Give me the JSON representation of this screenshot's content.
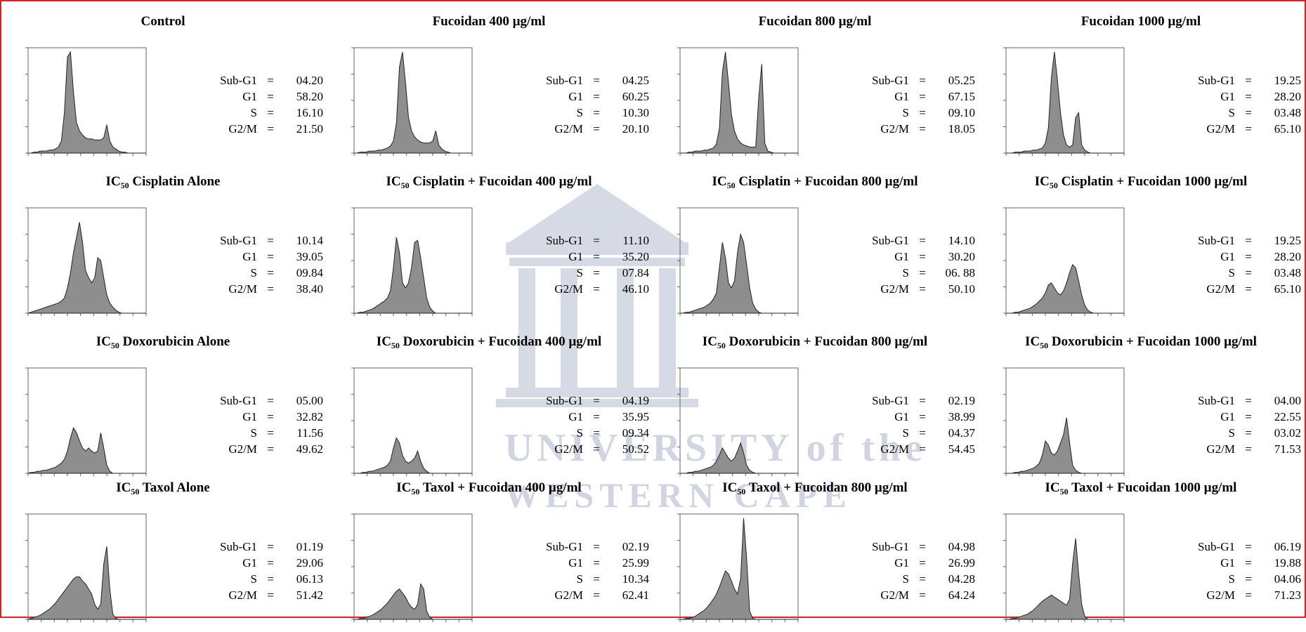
{
  "colors": {
    "frame": "#e02020",
    "fill": "#8e8e8e",
    "watermark": "#4a5a8a"
  },
  "watermark": {
    "line1": "UNIVERSITY of the",
    "line2": "WESTERN CAPE"
  },
  "panels": [
    {
      "title_pre": "",
      "title_sub": "",
      "title_post": "Control",
      "stats": [
        {
          "label": "Sub-G1",
          "value": "04.20"
        },
        {
          "label": "G1",
          "value": "58.20"
        },
        {
          "label": "S",
          "value": "16.10"
        },
        {
          "label": "G2/M",
          "value": "21.50"
        }
      ]
    },
    {
      "title_pre": "",
      "title_sub": "",
      "title_post": "Fucoidan 400 µg/ml",
      "stats": [
        {
          "label": "Sub-G1",
          "value": "04.25"
        },
        {
          "label": "G1",
          "value": "60.25"
        },
        {
          "label": "S",
          "value": "10.30"
        },
        {
          "label": "G2/M",
          "value": "20.10"
        }
      ]
    },
    {
      "title_pre": "",
      "title_sub": "",
      "title_post": "Fucoidan 800 µg/ml",
      "stats": [
        {
          "label": "Sub-G1",
          "value": "05.25"
        },
        {
          "label": "G1",
          "value": "67.15"
        },
        {
          "label": "S",
          "value": "09.10"
        },
        {
          "label": "G2/M",
          "value": "18.05"
        }
      ]
    },
    {
      "title_pre": "",
      "title_sub": "",
      "title_post": "Fucoidan 1000 µg/ml",
      "stats": [
        {
          "label": "Sub-G1",
          "value": "19.25"
        },
        {
          "label": "G1",
          "value": "28.20"
        },
        {
          "label": "S",
          "value": "03.48"
        },
        {
          "label": "G2/M",
          "value": "65.10"
        }
      ]
    },
    {
      "title_pre": "IC",
      "title_sub": "50",
      "title_post": " Cisplatin Alone",
      "stats": [
        {
          "label": "Sub-G1",
          "value": "10.14"
        },
        {
          "label": "G1",
          "value": "39.05"
        },
        {
          "label": "S",
          "value": "09.84"
        },
        {
          "label": "G2/M",
          "value": "38.40"
        }
      ]
    },
    {
      "title_pre": "IC",
      "title_sub": "50",
      "title_post": " Cisplatin + Fucoidan 400 µg/ml",
      "stats": [
        {
          "label": "Sub-G1",
          "value": "11.10"
        },
        {
          "label": "G1",
          "value": "35.20"
        },
        {
          "label": "S",
          "value": "07.84"
        },
        {
          "label": "G2/M",
          "value": "46.10"
        }
      ]
    },
    {
      "title_pre": "IC",
      "title_sub": "50",
      "title_post": " Cisplatin + Fucoidan 800 µg/ml",
      "stats": [
        {
          "label": "Sub-G1",
          "value": "14.10"
        },
        {
          "label": "G1",
          "value": "30.20"
        },
        {
          "label": "S",
          "value": "06. 88"
        },
        {
          "label": "G2/M",
          "value": "50.10"
        }
      ]
    },
    {
      "title_pre": "IC",
      "title_sub": "50",
      "title_post": " Cisplatin + Fucoidan 1000 µg/ml",
      "stats": [
        {
          "label": "Sub-G1",
          "value": "19.25"
        },
        {
          "label": "G1",
          "value": "28.20"
        },
        {
          "label": "S",
          "value": "03.48"
        },
        {
          "label": "G2/M",
          "value": "65.10"
        }
      ]
    },
    {
      "title_pre": "IC",
      "title_sub": "50",
      "title_post": " Doxorubicin Alone",
      "stats": [
        {
          "label": "Sub-G1",
          "value": "05.00"
        },
        {
          "label": "G1",
          "value": "32.82"
        },
        {
          "label": "S",
          "value": "11.56"
        },
        {
          "label": "G2/M",
          "value": "49.62"
        }
      ]
    },
    {
      "title_pre": "IC",
      "title_sub": "50",
      "title_post": " Doxorubicin + Fucoidan 400 µg/ml",
      "stats": [
        {
          "label": "Sub-G1",
          "value": "04.19"
        },
        {
          "label": "G1",
          "value": "35.95"
        },
        {
          "label": "S",
          "value": "09.34"
        },
        {
          "label": "G2/M",
          "value": "50.52"
        }
      ]
    },
    {
      "title_pre": "IC",
      "title_sub": "50",
      "title_post": " Doxorubicin + Fucoidan 800 µg/ml",
      "stats": [
        {
          "label": "Sub-G1",
          "value": "02.19"
        },
        {
          "label": "G1",
          "value": "38.99"
        },
        {
          "label": "S",
          "value": "04.37"
        },
        {
          "label": "G2/M",
          "value": "54.45"
        }
      ]
    },
    {
      "title_pre": "IC",
      "title_sub": "50",
      "title_post": " Doxorubicin + Fucoidan 1000 µg/ml",
      "stats": [
        {
          "label": "Sub-G1",
          "value": "04.00"
        },
        {
          "label": "G1",
          "value": "22.55"
        },
        {
          "label": "S",
          "value": "03.02"
        },
        {
          "label": "G2/M",
          "value": "71.53"
        }
      ]
    },
    {
      "title_pre": "IC",
      "title_sub": "50",
      "title_post": " Taxol Alone",
      "stats": [
        {
          "label": "Sub-G1",
          "value": "01.19"
        },
        {
          "label": "G1",
          "value": "29.06"
        },
        {
          "label": "S",
          "value": "06.13"
        },
        {
          "label": "G2/M",
          "value": "51.42"
        }
      ]
    },
    {
      "title_pre": "IC",
      "title_sub": "50",
      "title_post": " Taxol + Fucoidan 400 µg/ml",
      "stats": [
        {
          "label": "Sub-G1",
          "value": "02.19"
        },
        {
          "label": "G1",
          "value": "25.99"
        },
        {
          "label": "S",
          "value": "10.34"
        },
        {
          "label": "G2/M",
          "value": "62.41"
        }
      ]
    },
    {
      "title_pre": "IC",
      "title_sub": "50",
      "title_post": " Taxol + Fucoidan 800 µg/ml",
      "stats": [
        {
          "label": "Sub-G1",
          "value": "04.98"
        },
        {
          "label": "G1",
          "value": "26.99"
        },
        {
          "label": "S",
          "value": "04.28"
        },
        {
          "label": "G2/M",
          "value": "64.24"
        }
      ]
    },
    {
      "title_pre": "IC",
      "title_sub": "50",
      "title_post": " Taxol + Fucoidan 1000 µg/ml",
      "stats": [
        {
          "label": "Sub-G1",
          "value": "06.19"
        },
        {
          "label": "G1",
          "value": "19.88"
        },
        {
          "label": "S",
          "value": "04.06"
        },
        {
          "label": "G2/M",
          "value": "71.23"
        }
      ]
    }
  ],
  "chart_data": {
    "type": "area",
    "x_range": [
      0,
      1023
    ],
    "series": [
      {
        "values": [
          0,
          0,
          1,
          1,
          2,
          2,
          2,
          3,
          3,
          4,
          6,
          12,
          40,
          95,
          100,
          60,
          30,
          22,
          18,
          15,
          14,
          14,
          13,
          13,
          13,
          15,
          28,
          12,
          6,
          4,
          2,
          1,
          1,
          0,
          0,
          0,
          0,
          0,
          0,
          0
        ]
      },
      {
        "values": [
          0,
          0,
          1,
          1,
          1,
          2,
          2,
          2,
          3,
          3,
          4,
          5,
          7,
          12,
          30,
          85,
          100,
          70,
          35,
          22,
          16,
          13,
          11,
          10,
          10,
          10,
          12,
          22,
          8,
          4,
          2,
          1,
          0,
          0,
          0,
          0,
          0,
          0,
          0,
          0
        ]
      },
      {
        "values": [
          0,
          0,
          0,
          1,
          1,
          2,
          2,
          2,
          3,
          3,
          4,
          5,
          9,
          24,
          80,
          100,
          70,
          38,
          22,
          14,
          10,
          8,
          7,
          6,
          6,
          6,
          55,
          88,
          10,
          2,
          1,
          0,
          0,
          0,
          0,
          0,
          0,
          0,
          0,
          0
        ]
      },
      {
        "values": [
          0,
          0,
          0,
          1,
          1,
          1,
          2,
          2,
          2,
          3,
          3,
          4,
          5,
          10,
          25,
          75,
          100,
          72,
          40,
          18,
          8,
          6,
          8,
          35,
          40,
          8,
          3,
          1,
          0,
          0,
          0,
          0,
          0,
          0,
          0,
          0,
          0,
          0,
          0,
          0
        ]
      },
      {
        "values": [
          0,
          1,
          2,
          3,
          4,
          5,
          6,
          7,
          8,
          9,
          10,
          12,
          15,
          25,
          40,
          60,
          75,
          90,
          70,
          42,
          35,
          30,
          35,
          55,
          52,
          35,
          18,
          10,
          6,
          3,
          1,
          0,
          0,
          0,
          0,
          0,
          0,
          0,
          0,
          0
        ]
      },
      {
        "values": [
          0,
          0,
          1,
          1,
          2,
          3,
          4,
          6,
          8,
          10,
          12,
          15,
          22,
          45,
          75,
          60,
          30,
          25,
          30,
          45,
          70,
          72,
          55,
          35,
          15,
          6,
          2,
          0,
          0,
          0,
          0,
          0,
          0,
          0,
          0,
          0,
          0,
          0,
          0,
          0
        ]
      },
      {
        "values": [
          0,
          0,
          1,
          1,
          2,
          3,
          4,
          5,
          6,
          8,
          10,
          14,
          20,
          45,
          70,
          55,
          30,
          25,
          32,
          60,
          78,
          70,
          48,
          25,
          10,
          4,
          1,
          0,
          0,
          0,
          0,
          0,
          0,
          0,
          0,
          0,
          0,
          0,
          0,
          0
        ]
      },
      {
        "values": [
          0,
          0,
          0,
          1,
          1,
          2,
          3,
          4,
          5,
          7,
          9,
          12,
          15,
          20,
          28,
          30,
          25,
          20,
          18,
          22,
          30,
          40,
          48,
          45,
          32,
          18,
          8,
          3,
          1,
          0,
          0,
          0,
          0,
          0,
          0,
          0,
          0,
          0,
          0,
          0
        ]
      },
      {
        "values": [
          0,
          1,
          1,
          2,
          2,
          3,
          3,
          4,
          5,
          6,
          8,
          10,
          14,
          22,
          35,
          45,
          40,
          32,
          25,
          22,
          25,
          22,
          20,
          22,
          40,
          25,
          8,
          2,
          0,
          0,
          0,
          0,
          0,
          0,
          0,
          0,
          0,
          0,
          0,
          0
        ]
      },
      {
        "values": [
          0,
          0,
          0,
          1,
          1,
          2,
          2,
          3,
          4,
          5,
          6,
          8,
          12,
          25,
          35,
          30,
          18,
          12,
          10,
          12,
          15,
          22,
          12,
          5,
          2,
          0,
          0,
          0,
          0,
          0,
          0,
          0,
          0,
          0,
          0,
          0,
          0,
          0,
          0,
          0
        ]
      },
      {
        "values": [
          0,
          0,
          0,
          1,
          1,
          2,
          2,
          3,
          4,
          5,
          6,
          8,
          12,
          18,
          25,
          20,
          15,
          12,
          15,
          22,
          30,
          20,
          8,
          3,
          1,
          0,
          0,
          0,
          0,
          0,
          0,
          0,
          0,
          0,
          0,
          0,
          0,
          0,
          0,
          0
        ]
      },
      {
        "values": [
          0,
          0,
          0,
          1,
          1,
          2,
          2,
          3,
          4,
          5,
          7,
          10,
          18,
          32,
          28,
          20,
          18,
          22,
          30,
          38,
          55,
          30,
          8,
          3,
          1,
          0,
          0,
          0,
          0,
          0,
          0,
          0,
          0,
          0,
          0,
          0,
          0,
          0,
          0,
          0
        ]
      },
      {
        "values": [
          0,
          1,
          2,
          3,
          4,
          6,
          8,
          10,
          13,
          16,
          20,
          24,
          28,
          32,
          36,
          40,
          42,
          42,
          38,
          35,
          30,
          25,
          15,
          10,
          15,
          55,
          72,
          30,
          5,
          1,
          0,
          0,
          0,
          0,
          0,
          0,
          0,
          0,
          0,
          0
        ]
      },
      {
        "values": [
          0,
          0,
          1,
          1,
          2,
          3,
          4,
          6,
          8,
          10,
          13,
          16,
          20,
          24,
          28,
          30,
          26,
          22,
          16,
          12,
          10,
          15,
          35,
          30,
          8,
          2,
          0,
          0,
          0,
          0,
          0,
          0,
          0,
          0,
          0,
          0,
          0,
          0,
          0,
          0
        ]
      },
      {
        "values": [
          0,
          0,
          1,
          1,
          2,
          3,
          5,
          7,
          9,
          12,
          16,
          20,
          25,
          32,
          40,
          48,
          45,
          38,
          30,
          25,
          40,
          100,
          60,
          8,
          1,
          0,
          0,
          0,
          0,
          0,
          0,
          0,
          0,
          0,
          0,
          0,
          0,
          0,
          0,
          0
        ]
      },
      {
        "values": [
          0,
          0,
          1,
          1,
          2,
          3,
          4,
          5,
          7,
          9,
          12,
          15,
          18,
          20,
          22,
          24,
          22,
          20,
          18,
          16,
          14,
          20,
          55,
          80,
          45,
          15,
          3,
          0,
          0,
          0,
          0,
          0,
          0,
          0,
          0,
          0,
          0,
          0,
          0,
          0
        ]
      }
    ]
  }
}
